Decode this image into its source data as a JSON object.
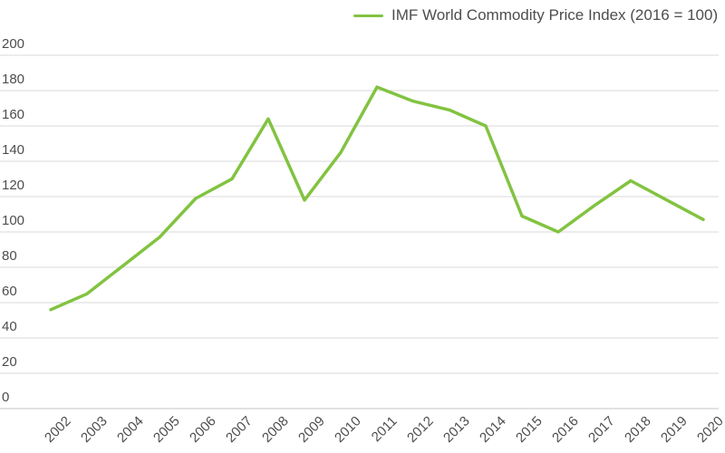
{
  "chart_data": {
    "type": "line",
    "title": "",
    "legend_position": "top-center",
    "grid": "horizontal-gridlines-on",
    "categories": [
      "2002",
      "2003",
      "2004",
      "2005",
      "2006",
      "2007",
      "2008",
      "2009",
      "2010",
      "2011",
      "2012",
      "2013",
      "2014",
      "2015",
      "2016",
      "2017",
      "2018",
      "2019",
      "2020"
    ],
    "series": [
      {
        "name": "IMF World Commodity Price Index (2016 = 100)",
        "values": [
          56,
          65,
          81,
          97,
          119,
          130,
          164,
          118,
          145,
          182,
          174,
          169,
          160,
          109,
          100,
          115,
          129,
          118,
          107
        ]
      }
    ],
    "xlabel": "",
    "ylabel": "",
    "ylim": [
      0,
      200
    ],
    "ytick_step": 20,
    "colors": {
      "line": "#82C341",
      "grid": "#D9D9D9",
      "axis_line": "#C6C6C6",
      "text": "#4D4D4D"
    }
  }
}
